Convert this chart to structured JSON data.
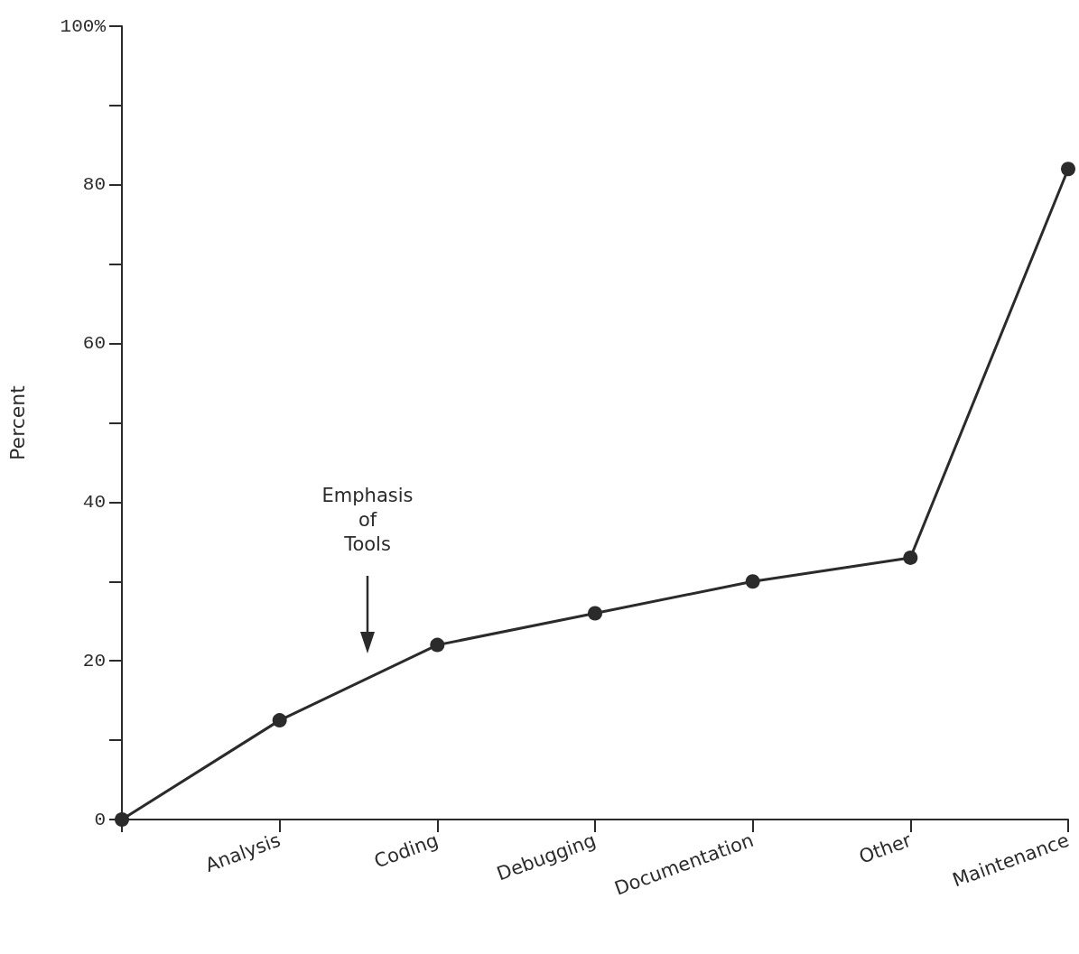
{
  "chart_data": {
    "type": "line",
    "ylabel": "Percent",
    "categories": [
      null,
      "Analysis",
      "Coding",
      "Debugging",
      "Documentation",
      "Other",
      "Maintenance"
    ],
    "series": [
      {
        "color": "#2b2b2b",
        "values": [
          0,
          12.5,
          22,
          26,
          30,
          33,
          82
        ]
      }
    ],
    "ylim": [
      0,
      100
    ],
    "yticks": [
      0,
      {
        "value": 10,
        "label": null
      },
      20,
      {
        "value": 30,
        "label": null
      },
      40,
      {
        "value": 50,
        "label": null
      },
      60,
      {
        "value": 70,
        "label": null
      },
      80,
      {
        "value": 90,
        "label": null
      },
      {
        "value": 100,
        "label": "100%"
      }
    ],
    "annotations": [
      "Emphasis\nof\nTools"
    ],
    "marker": "circle",
    "line_style": "solid",
    "grid": false
  }
}
